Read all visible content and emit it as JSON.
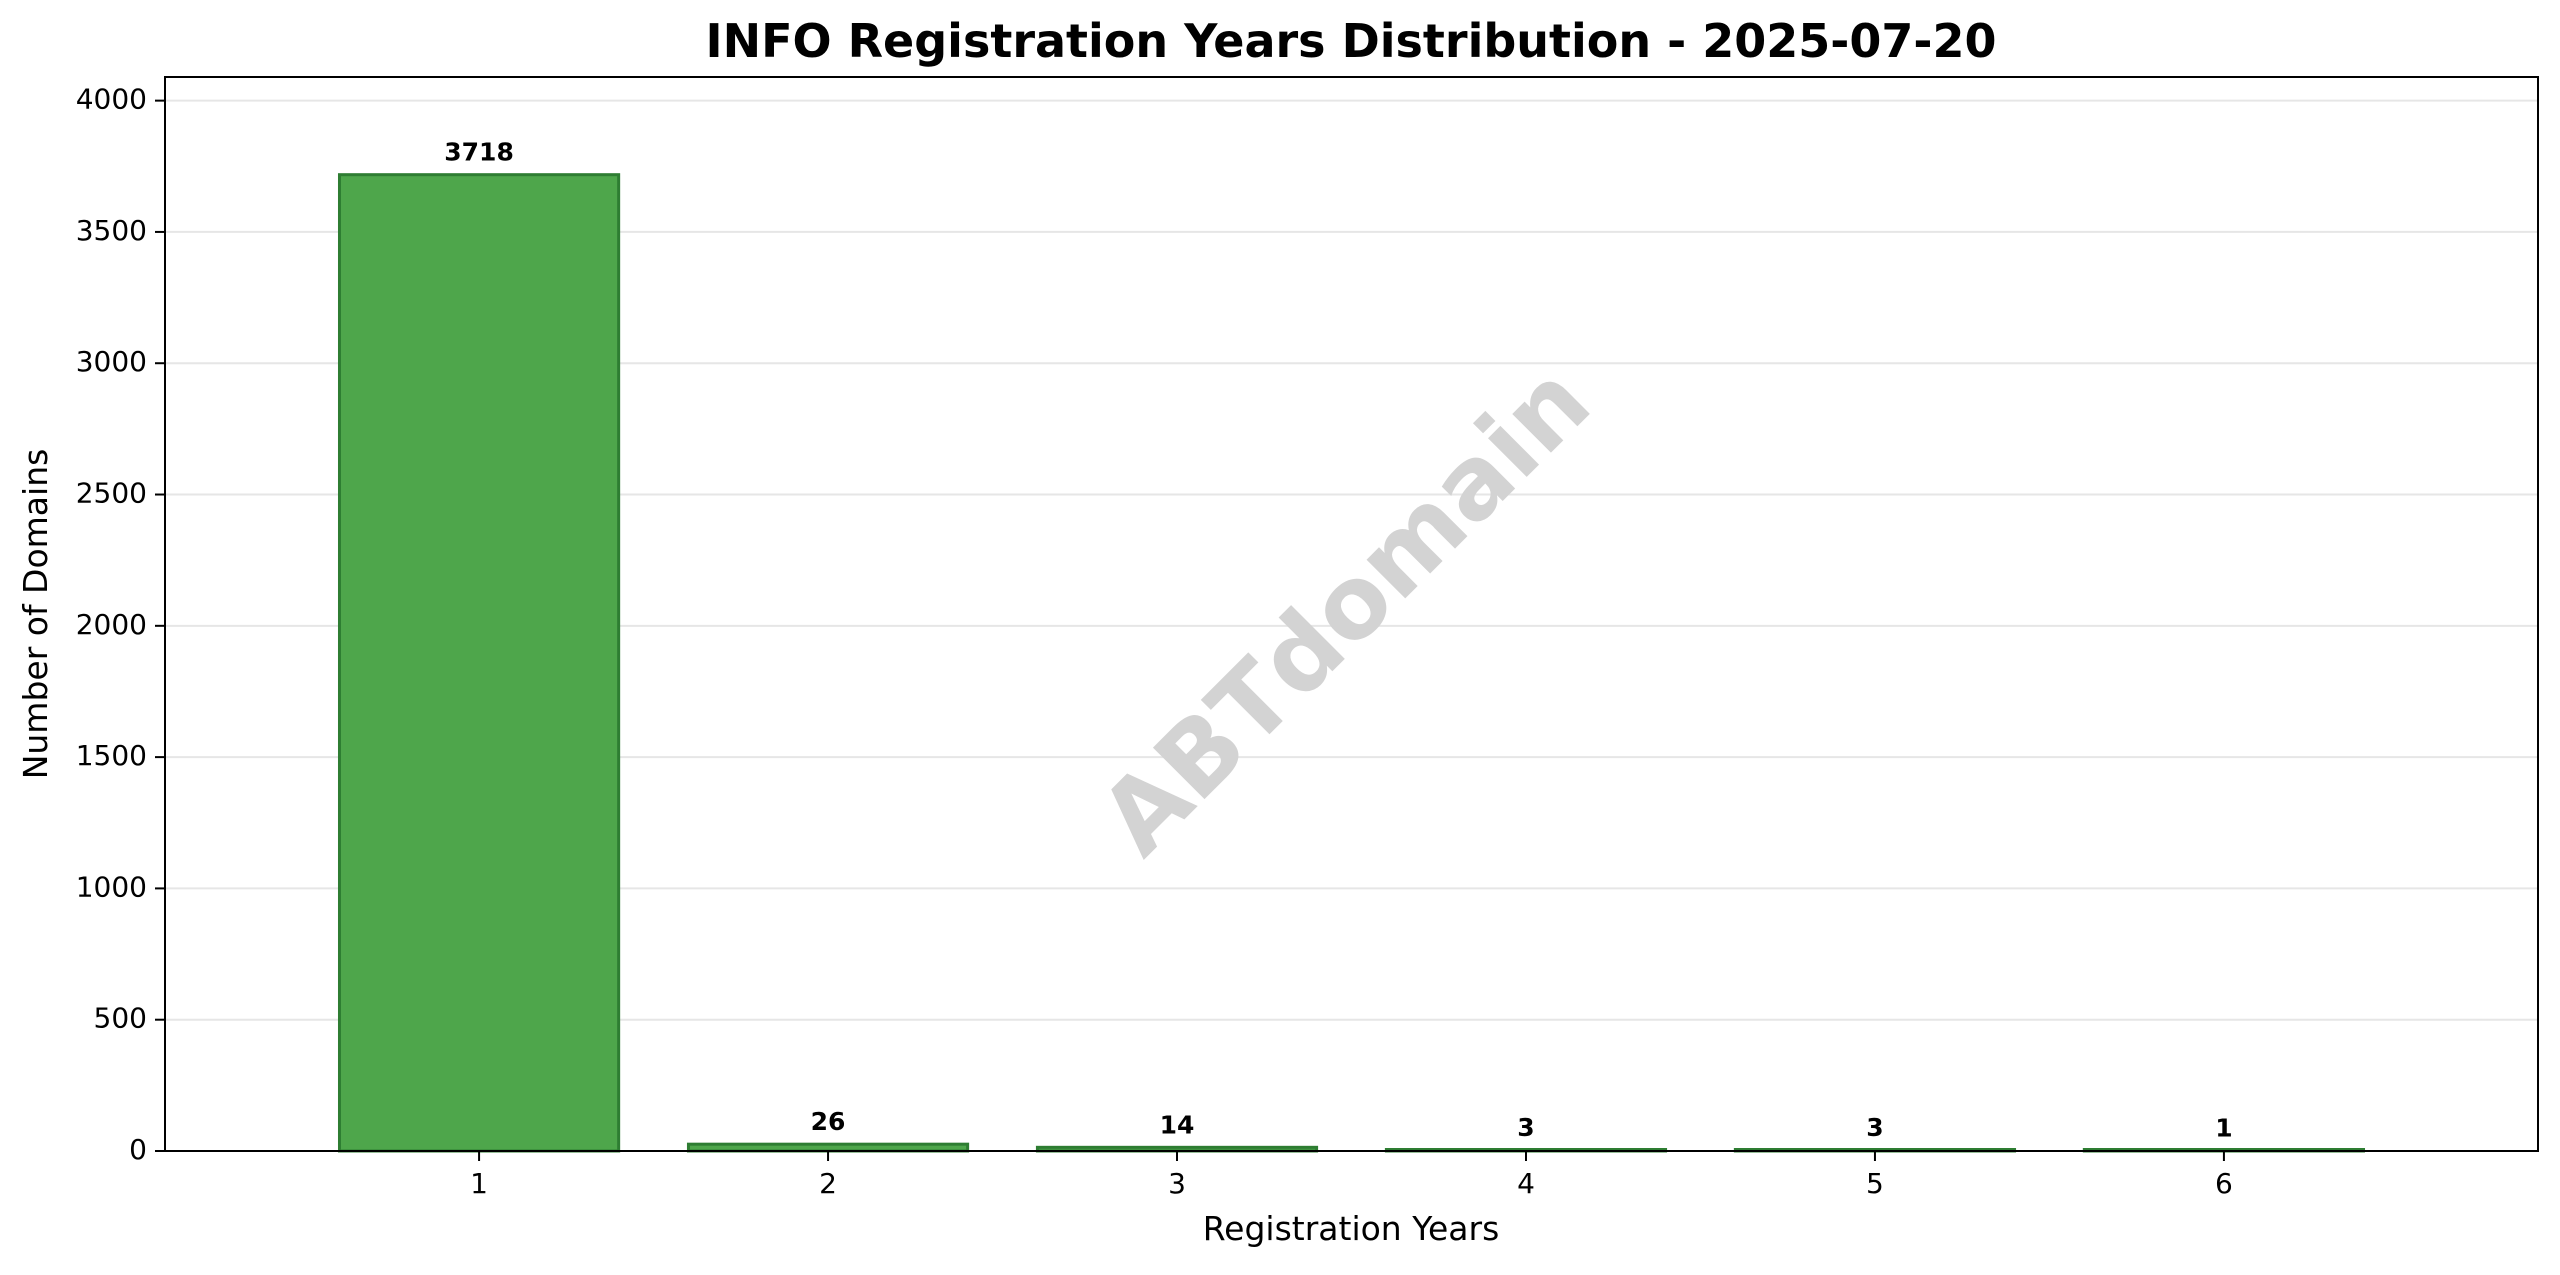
{
  "chart_data": {
    "type": "bar",
    "title": "INFO Registration Years Distribution - 2025-07-20",
    "xlabel": "Registration Years",
    "ylabel": "Number of Domains",
    "categories": [
      "1",
      "2",
      "3",
      "4",
      "5",
      "6"
    ],
    "values": [
      3718,
      26,
      14,
      3,
      3,
      1
    ],
    "data_labels": [
      "3718",
      "26",
      "14",
      "3",
      "3",
      "1"
    ],
    "ylim": [
      0,
      4090
    ],
    "yticks": [
      0,
      500,
      1000,
      1500,
      2000,
      2500,
      3000,
      3500,
      4000
    ],
    "grid": "horizontal",
    "legend": "none",
    "watermark": "ABTdomain",
    "colors": {
      "bar_fill": "#4ea64b",
      "bar_edge": "#2e7d32",
      "grid": "#e6e6e6",
      "axis": "#000000",
      "watermark": "#d3d3d3"
    }
  }
}
